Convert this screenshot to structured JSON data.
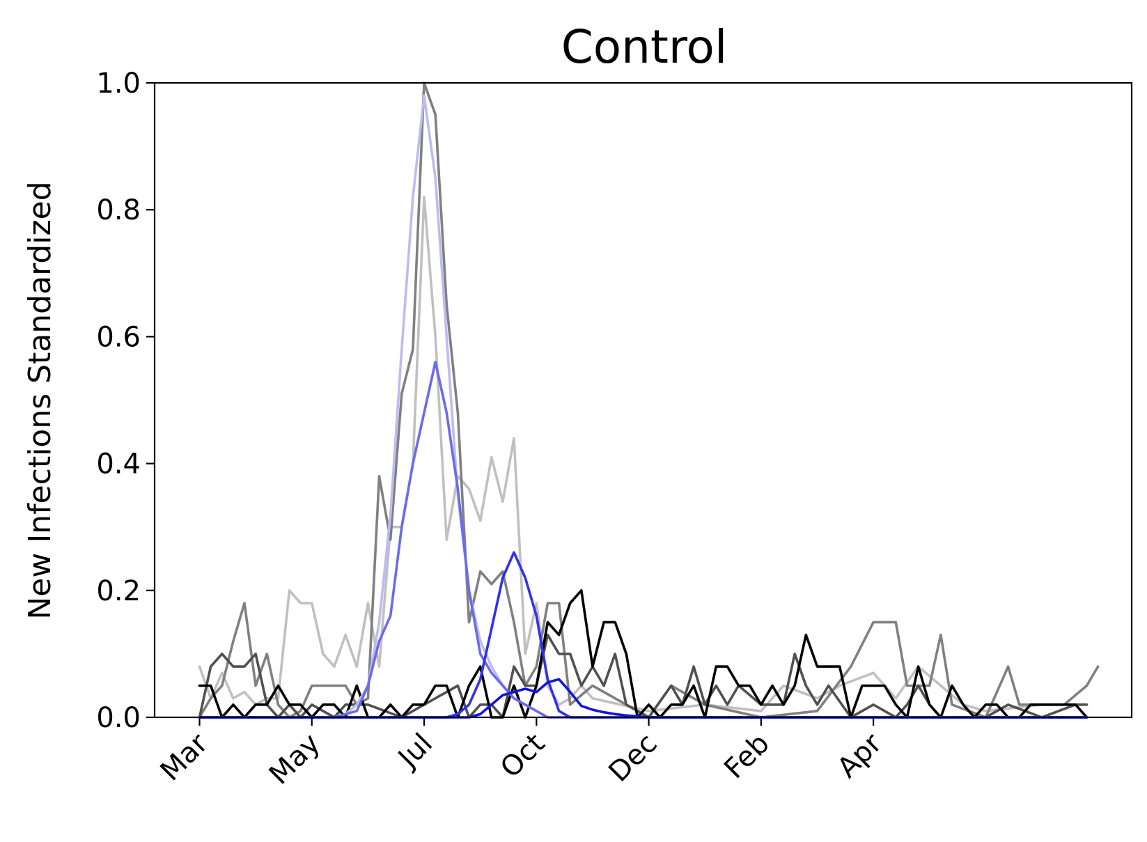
{
  "chart_data": {
    "type": "line",
    "title": "Control",
    "xlabel": "",
    "ylabel": "New Infections Standardized",
    "ylim": [
      0,
      1.0
    ],
    "yticks": [
      0.0,
      0.2,
      0.4,
      0.6,
      0.8,
      1.0
    ],
    "ytick_labels": [
      "0.0",
      "0.2",
      "0.4",
      "0.6",
      "0.8",
      "1.0"
    ],
    "xlim": [
      -4,
      83
    ],
    "xticks": [
      0,
      10,
      20,
      30,
      40,
      50,
      60
    ],
    "xtick_labels": [
      "Mar",
      "May",
      "Jul",
      "Oct",
      "Dec",
      "Feb",
      "Apr"
    ],
    "grid": false,
    "legend": "none",
    "series": [
      {
        "color": "#c0c0c0",
        "points": [
          [
            0,
            0.08
          ],
          [
            1,
            0.03
          ],
          [
            2,
            0.07
          ],
          [
            3,
            0.03
          ],
          [
            4,
            0.04
          ],
          [
            5,
            0.02
          ],
          [
            6,
            0.03
          ],
          [
            7,
            0.03
          ],
          [
            8,
            0.2
          ],
          [
            9,
            0.18
          ],
          [
            10,
            0.18
          ],
          [
            11,
            0.1
          ],
          [
            12,
            0.08
          ],
          [
            13,
            0.13
          ],
          [
            14,
            0.08
          ],
          [
            15,
            0.18
          ],
          [
            16,
            0.08
          ],
          [
            17,
            0.3
          ],
          [
            18,
            0.3
          ],
          [
            19,
            0.4
          ],
          [
            20,
            0.82
          ],
          [
            21,
            0.6
          ],
          [
            22,
            0.28
          ],
          [
            23,
            0.38
          ],
          [
            24,
            0.36
          ],
          [
            25,
            0.31
          ],
          [
            26,
            0.41
          ],
          [
            27,
            0.34
          ],
          [
            28,
            0.44
          ],
          [
            29,
            0.1
          ],
          [
            30,
            0.18
          ],
          [
            31,
            0.05
          ],
          [
            32,
            0.02
          ],
          [
            33,
            0.03
          ],
          [
            34,
            0.05
          ],
          [
            35,
            0.03
          ],
          [
            40,
            0.01
          ],
          [
            45,
            0.02
          ],
          [
            50,
            0.01
          ],
          [
            52,
            0.05
          ],
          [
            55,
            0.03
          ],
          [
            57,
            0.05
          ],
          [
            60,
            0.07
          ],
          [
            62,
            0.03
          ],
          [
            64,
            0.08
          ],
          [
            66,
            0.05
          ],
          [
            68,
            0.02
          ],
          [
            70,
            0.01
          ],
          [
            75,
            0.02
          ],
          [
            79,
            0.02
          ]
        ]
      },
      {
        "color": "#808080",
        "points": [
          [
            0,
            0.0
          ],
          [
            1,
            0.03
          ],
          [
            2,
            0.05
          ],
          [
            3,
            0.12
          ],
          [
            4,
            0.18
          ],
          [
            5,
            0.05
          ],
          [
            6,
            0.1
          ],
          [
            7,
            0.02
          ],
          [
            8,
            0.0
          ],
          [
            9,
            0.01
          ],
          [
            10,
            0.05
          ],
          [
            11,
            0.05
          ],
          [
            12,
            0.05
          ],
          [
            13,
            0.05
          ],
          [
            14,
            0.02
          ],
          [
            15,
            0.03
          ],
          [
            16,
            0.38
          ],
          [
            17,
            0.28
          ],
          [
            18,
            0.51
          ],
          [
            19,
            0.58
          ],
          [
            20,
            1.0
          ],
          [
            21,
            0.95
          ],
          [
            22,
            0.65
          ],
          [
            23,
            0.48
          ],
          [
            24,
            0.15
          ],
          [
            25,
            0.23
          ],
          [
            26,
            0.21
          ],
          [
            27,
            0.23
          ],
          [
            28,
            0.15
          ],
          [
            29,
            0.05
          ],
          [
            30,
            0.08
          ],
          [
            31,
            0.18
          ],
          [
            32,
            0.18
          ],
          [
            33,
            0.02
          ],
          [
            35,
            0.05
          ],
          [
            40,
            0.0
          ],
          [
            42,
            0.05
          ],
          [
            45,
            0.02
          ],
          [
            50,
            0.0
          ],
          [
            55,
            0.01
          ],
          [
            58,
            0.08
          ],
          [
            60,
            0.15
          ],
          [
            61,
            0.15
          ],
          [
            62,
            0.15
          ],
          [
            63,
            0.05
          ],
          [
            65,
            0.05
          ],
          [
            66,
            0.13
          ],
          [
            67,
            0.02
          ],
          [
            70,
            0.0
          ],
          [
            72,
            0.08
          ],
          [
            73,
            0.02
          ],
          [
            75,
            0.02
          ],
          [
            77,
            0.02
          ],
          [
            79,
            0.05
          ],
          [
            80,
            0.08
          ]
        ]
      },
      {
        "color": "#505050",
        "points": [
          [
            0,
            0.0
          ],
          [
            1,
            0.08
          ],
          [
            2,
            0.1
          ],
          [
            3,
            0.08
          ],
          [
            4,
            0.08
          ],
          [
            5,
            0.1
          ],
          [
            6,
            0.02
          ],
          [
            7,
            0.0
          ],
          [
            8,
            0.02
          ],
          [
            9,
            0.0
          ],
          [
            10,
            0.02
          ],
          [
            12,
            0.0
          ],
          [
            13,
            0.02
          ],
          [
            15,
            0.02
          ],
          [
            18,
            0.0
          ],
          [
            20,
            0.02
          ],
          [
            23,
            0.05
          ],
          [
            24,
            0.0
          ],
          [
            25,
            0.02
          ],
          [
            26,
            0.02
          ],
          [
            27,
            0.0
          ],
          [
            28,
            0.08
          ],
          [
            29,
            0.05
          ],
          [
            30,
            0.05
          ],
          [
            31,
            0.13
          ],
          [
            32,
            0.1
          ],
          [
            33,
            0.1
          ],
          [
            34,
            0.05
          ],
          [
            35,
            0.08
          ],
          [
            36,
            0.05
          ],
          [
            37,
            0.1
          ],
          [
            38,
            0.02
          ],
          [
            40,
            0.0
          ],
          [
            42,
            0.05
          ],
          [
            43,
            0.02
          ],
          [
            44,
            0.08
          ],
          [
            45,
            0.02
          ],
          [
            46,
            0.05
          ],
          [
            47,
            0.02
          ],
          [
            48,
            0.05
          ],
          [
            50,
            0.02
          ],
          [
            52,
            0.02
          ],
          [
            53,
            0.1
          ],
          [
            54,
            0.05
          ],
          [
            55,
            0.02
          ],
          [
            56,
            0.05
          ],
          [
            58,
            0.0
          ],
          [
            60,
            0.02
          ],
          [
            62,
            0.0
          ],
          [
            63,
            0.02
          ],
          [
            64,
            0.05
          ],
          [
            65,
            0.02
          ],
          [
            66,
            0.0
          ],
          [
            70,
            0.0
          ],
          [
            72,
            0.02
          ],
          [
            75,
            0.0
          ],
          [
            78,
            0.02
          ],
          [
            79,
            0.02
          ]
        ]
      },
      {
        "color": "#000000",
        "points": [
          [
            0,
            0.05
          ],
          [
            1,
            0.05
          ],
          [
            2,
            0.0
          ],
          [
            3,
            0.02
          ],
          [
            4,
            0.0
          ],
          [
            5,
            0.02
          ],
          [
            6,
            0.02
          ],
          [
            7,
            0.05
          ],
          [
            8,
            0.02
          ],
          [
            9,
            0.02
          ],
          [
            10,
            0.0
          ],
          [
            11,
            0.02
          ],
          [
            12,
            0.02
          ],
          [
            13,
            0.0
          ],
          [
            14,
            0.05
          ],
          [
            15,
            0.0
          ],
          [
            16,
            0.0
          ],
          [
            17,
            0.02
          ],
          [
            18,
            0.0
          ],
          [
            19,
            0.02
          ],
          [
            20,
            0.02
          ],
          [
            21,
            0.05
          ],
          [
            22,
            0.05
          ],
          [
            23,
            0.0
          ],
          [
            24,
            0.05
          ],
          [
            25,
            0.08
          ],
          [
            26,
            0.0
          ],
          [
            27,
            0.0
          ],
          [
            28,
            0.05
          ],
          [
            29,
            0.0
          ],
          [
            30,
            0.05
          ],
          [
            31,
            0.15
          ],
          [
            32,
            0.13
          ],
          [
            33,
            0.18
          ],
          [
            34,
            0.2
          ],
          [
            35,
            0.08
          ],
          [
            36,
            0.15
          ],
          [
            37,
            0.15
          ],
          [
            38,
            0.1
          ],
          [
            39,
            0.0
          ],
          [
            40,
            0.02
          ],
          [
            41,
            0.0
          ],
          [
            42,
            0.02
          ],
          [
            43,
            0.02
          ],
          [
            44,
            0.05
          ],
          [
            45,
            0.0
          ],
          [
            46,
            0.08
          ],
          [
            47,
            0.08
          ],
          [
            48,
            0.05
          ],
          [
            49,
            0.05
          ],
          [
            50,
            0.02
          ],
          [
            51,
            0.05
          ],
          [
            52,
            0.02
          ],
          [
            53,
            0.05
          ],
          [
            54,
            0.13
          ],
          [
            55,
            0.08
          ],
          [
            56,
            0.08
          ],
          [
            57,
            0.08
          ],
          [
            58,
            0.0
          ],
          [
            59,
            0.05
          ],
          [
            60,
            0.05
          ],
          [
            61,
            0.05
          ],
          [
            62,
            0.02
          ],
          [
            63,
            0.0
          ],
          [
            64,
            0.08
          ],
          [
            65,
            0.02
          ],
          [
            66,
            0.0
          ],
          [
            67,
            0.05
          ],
          [
            68,
            0.02
          ],
          [
            69,
            0.0
          ],
          [
            70,
            0.02
          ],
          [
            71,
            0.02
          ],
          [
            72,
            0.0
          ],
          [
            73,
            0.0
          ],
          [
            74,
            0.02
          ],
          [
            75,
            0.02
          ],
          [
            76,
            0.02
          ],
          [
            77,
            0.02
          ],
          [
            78,
            0.02
          ],
          [
            79,
            0.0
          ]
        ]
      },
      {
        "color": "#bcbcf4",
        "points": [
          [
            0,
            0.0
          ],
          [
            10,
            0.0
          ],
          [
            12,
            0.0
          ],
          [
            13,
            0.005
          ],
          [
            14,
            0.02
          ],
          [
            15,
            0.05
          ],
          [
            16,
            0.15
          ],
          [
            17,
            0.32
          ],
          [
            18,
            0.58
          ],
          [
            19,
            0.82
          ],
          [
            20,
            0.98
          ],
          [
            21,
            0.85
          ],
          [
            22,
            0.6
          ],
          [
            23,
            0.35
          ],
          [
            24,
            0.2
          ],
          [
            25,
            0.12
          ],
          [
            26,
            0.08
          ],
          [
            27,
            0.05
          ],
          [
            28,
            0.03
          ],
          [
            29,
            0.02
          ],
          [
            30,
            0.01
          ],
          [
            31,
            0.0
          ],
          [
            79,
            0.0
          ]
        ]
      },
      {
        "color": "#6a6af0",
        "points": [
          [
            0,
            0.0
          ],
          [
            12,
            0.0
          ],
          [
            13,
            0.005
          ],
          [
            14,
            0.01
          ],
          [
            15,
            0.05
          ],
          [
            16,
            0.12
          ],
          [
            17,
            0.16
          ],
          [
            18,
            0.3
          ],
          [
            19,
            0.4
          ],
          [
            20,
            0.48
          ],
          [
            21,
            0.56
          ],
          [
            22,
            0.48
          ],
          [
            23,
            0.36
          ],
          [
            24,
            0.2
          ],
          [
            25,
            0.1
          ],
          [
            26,
            0.07
          ],
          [
            27,
            0.05
          ],
          [
            28,
            0.03
          ],
          [
            29,
            0.02
          ],
          [
            30,
            0.01
          ],
          [
            31,
            0.0
          ],
          [
            79,
            0.0
          ]
        ]
      },
      {
        "color": "#3030f0",
        "points": [
          [
            0,
            0.0
          ],
          [
            22,
            0.0
          ],
          [
            23,
            0.005
          ],
          [
            24,
            0.02
          ],
          [
            25,
            0.06
          ],
          [
            26,
            0.14
          ],
          [
            27,
            0.22
          ],
          [
            28,
            0.26
          ],
          [
            29,
            0.22
          ],
          [
            30,
            0.16
          ],
          [
            31,
            0.06
          ],
          [
            32,
            0.01
          ],
          [
            33,
            0.0
          ],
          [
            79,
            0.0
          ]
        ]
      },
      {
        "color": "#1414e0",
        "points": [
          [
            0,
            0.0
          ],
          [
            24,
            0.0
          ],
          [
            25,
            0.005
          ],
          [
            26,
            0.02
          ],
          [
            27,
            0.035
          ],
          [
            28,
            0.04
          ],
          [
            29,
            0.045
          ],
          [
            30,
            0.04
          ],
          [
            31,
            0.055
          ],
          [
            32,
            0.06
          ],
          [
            33,
            0.04
          ],
          [
            34,
            0.018
          ],
          [
            35,
            0.012
          ],
          [
            36,
            0.008
          ],
          [
            37,
            0.005
          ],
          [
            38,
            0.003
          ],
          [
            40,
            0.0
          ],
          [
            79,
            0.0
          ]
        ]
      }
    ]
  }
}
